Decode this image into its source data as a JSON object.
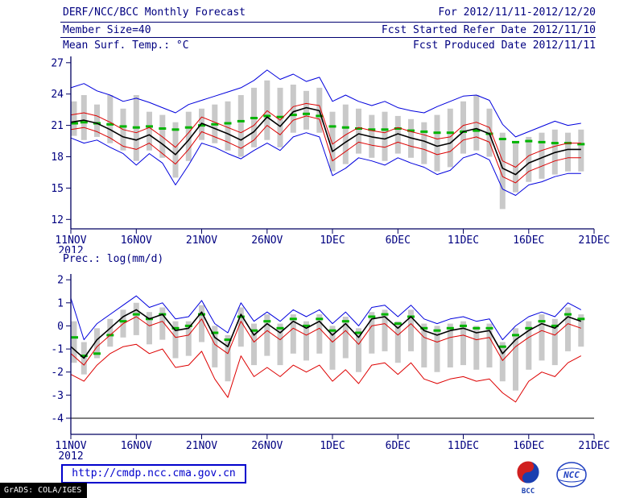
{
  "header": {
    "title": "DERF/NCC/BCC Monthly Forecast",
    "member_size": "Member Size=40",
    "variable": "Mean Surf. Temp.: °C",
    "forecast_range": "For 2012/11/11-2012/12/20",
    "refer_date": "Fcst Started Refer Date 2012/11/10",
    "produced_date": "Fcst Produced Date 2012/11/11"
  },
  "footer": {
    "url": "http://cmdp.ncc.cma.gov.cn",
    "grads_credit": "GrADS: COLA/IGES",
    "bcc_label": "BCC",
    "ncc_label": "NCC"
  },
  "colors": {
    "accent": "#000080",
    "axis": "#000060",
    "label": "#000080",
    "blue": "#0000dd",
    "red": "#dd0000",
    "black": "#000000",
    "green": "#00b400",
    "gray": "#c9c9c9"
  },
  "chart_data": [
    {
      "type": "line",
      "title": "Mean Surf. Temp.: °C",
      "x_tick_labels": [
        "11NOV",
        "16NOV",
        "21NOV",
        "26NOV",
        "1DEC",
        "6DEC",
        "11DEC",
        "16DEC",
        "21DEC"
      ],
      "x_tick_positions": [
        0,
        5,
        10,
        15,
        20,
        25,
        30,
        35,
        40
      ],
      "x_year_label": "2012",
      "x_max": 40,
      "n_days": 40,
      "ylim": [
        12,
        27
      ],
      "frame_ylim": [
        11.1,
        27.6
      ],
      "y_ticks": [
        12,
        15,
        18,
        21,
        24,
        27
      ],
      "grid": false,
      "legend": "none",
      "bars": {
        "name": "ensemble-spread",
        "color": "#c9c9c9",
        "top": [
          23.3,
          23.9,
          23.0,
          23.9,
          22.6,
          23.9,
          22.3,
          22.0,
          21.3,
          22.3,
          22.6,
          23.0,
          23.3,
          23.9,
          24.6,
          25.3,
          24.6,
          24.9,
          24.3,
          24.6,
          22.3,
          23.0,
          22.6,
          22.0,
          22.3,
          21.9,
          21.6,
          21.3,
          22.0,
          22.6,
          23.3,
          23.9,
          22.6,
          20.3,
          19.3,
          19.9,
          20.3,
          20.6,
          20.3,
          20.6
        ],
        "bottom": [
          20.0,
          19.6,
          19.9,
          19.3,
          18.6,
          17.6,
          18.6,
          17.9,
          16.0,
          17.6,
          19.6,
          19.3,
          18.6,
          18.0,
          18.9,
          19.6,
          18.9,
          20.3,
          20.6,
          20.3,
          16.6,
          17.3,
          18.3,
          17.9,
          17.6,
          18.3,
          17.9,
          17.3,
          16.6,
          17.0,
          18.3,
          18.6,
          18.0,
          13.0,
          14.6,
          15.6,
          15.9,
          16.3,
          16.6,
          16.6
        ]
      },
      "dashes": {
        "name": "climatology",
        "color": "#00b400",
        "values": [
          21.2,
          21.3,
          21.2,
          21.1,
          20.9,
          20.8,
          20.9,
          20.7,
          20.6,
          20.8,
          21.0,
          21.1,
          21.2,
          21.4,
          21.7,
          21.9,
          21.8,
          22.0,
          22.1,
          21.9,
          20.9,
          20.8,
          20.7,
          20.6,
          20.6,
          20.7,
          20.5,
          20.4,
          20.3,
          20.3,
          20.4,
          20.5,
          20.2,
          19.7,
          19.4,
          19.5,
          19.4,
          19.3,
          19.3,
          19.2
        ]
      },
      "series": [
        {
          "name": "ensemble-max",
          "color": "#0000dd",
          "width": 1,
          "values": [
            24.6,
            25.0,
            24.3,
            23.9,
            23.3,
            23.6,
            23.2,
            22.7,
            22.2,
            23.0,
            23.4,
            23.8,
            24.2,
            24.6,
            25.3,
            26.3,
            25.4,
            25.9,
            25.2,
            25.6,
            23.3,
            23.9,
            23.3,
            22.9,
            23.3,
            22.7,
            22.4,
            22.2,
            22.8,
            23.3,
            23.8,
            23.9,
            23.4,
            21.1,
            19.9,
            20.4,
            20.9,
            21.4,
            21.0,
            21.2
          ]
        },
        {
          "name": "upper-quartile",
          "color": "#dd0000",
          "width": 1,
          "values": [
            22.0,
            22.2,
            21.9,
            21.3,
            20.6,
            20.3,
            20.8,
            19.9,
            18.9,
            20.3,
            21.8,
            21.3,
            20.8,
            20.3,
            21.0,
            22.4,
            21.5,
            22.8,
            23.1,
            22.9,
            19.2,
            20.1,
            20.8,
            20.5,
            20.3,
            20.8,
            20.4,
            20.1,
            19.7,
            19.9,
            21.0,
            21.3,
            20.8,
            17.6,
            17.0,
            18.1,
            18.6,
            19.0,
            19.3,
            19.3
          ]
        },
        {
          "name": "ensemble-mean",
          "color": "#000000",
          "width": 1.6,
          "values": [
            21.3,
            21.5,
            21.2,
            20.6,
            19.9,
            19.6,
            20.1,
            19.2,
            18.2,
            19.6,
            21.2,
            20.7,
            20.2,
            19.6,
            20.4,
            21.8,
            20.9,
            22.3,
            22.7,
            22.4,
            18.5,
            19.4,
            20.2,
            19.9,
            19.7,
            20.2,
            19.8,
            19.5,
            19.0,
            19.3,
            20.4,
            20.7,
            20.2,
            16.9,
            16.3,
            17.4,
            17.9,
            18.4,
            18.7,
            18.7
          ]
        },
        {
          "name": "lower-quartile",
          "color": "#dd0000",
          "width": 1,
          "values": [
            20.6,
            20.8,
            20.4,
            19.8,
            19.0,
            18.7,
            19.3,
            18.3,
            17.3,
            18.7,
            20.4,
            19.9,
            19.4,
            18.8,
            19.6,
            21.0,
            20.1,
            21.5,
            21.9,
            21.6,
            17.6,
            18.5,
            19.4,
            19.1,
            18.9,
            19.4,
            19.0,
            18.7,
            18.2,
            18.5,
            19.6,
            19.9,
            19.4,
            16.1,
            15.5,
            16.6,
            17.1,
            17.6,
            17.9,
            17.9
          ]
        },
        {
          "name": "ensemble-min",
          "color": "#0000dd",
          "width": 1,
          "values": [
            19.8,
            19.3,
            19.6,
            18.9,
            18.3,
            17.2,
            18.3,
            17.4,
            15.3,
            17.2,
            19.3,
            18.9,
            18.3,
            17.8,
            18.6,
            19.3,
            18.6,
            19.9,
            20.3,
            19.9,
            16.2,
            16.9,
            17.9,
            17.6,
            17.2,
            17.9,
            17.4,
            17.0,
            16.3,
            16.7,
            17.9,
            18.3,
            17.7,
            14.9,
            14.3,
            15.3,
            15.6,
            16.1,
            16.4,
            16.4
          ]
        }
      ]
    },
    {
      "type": "line",
      "title": "Prec.: log(mm/d)",
      "x_tick_labels": [
        "11NOV",
        "16NOV",
        "21NOV",
        "26NOV",
        "1DEC",
        "6DEC",
        "11DEC",
        "16DEC",
        "21DEC"
      ],
      "x_tick_positions": [
        0,
        5,
        10,
        15,
        20,
        25,
        30,
        35,
        40
      ],
      "x_year_label": "2012",
      "x_max": 40,
      "n_days": 40,
      "ylim": [
        -4,
        2
      ],
      "frame_ylim": [
        -4.7,
        2.25
      ],
      "y_ticks": [
        2,
        1,
        0,
        -1,
        -2,
        -3,
        -4
      ],
      "grid": false,
      "legend": "none",
      "bars": {
        "name": "ensemble-spread",
        "color": "#c9c9c9",
        "top": [
          0.2,
          -0.7,
          -0.1,
          0.3,
          0.7,
          1.0,
          0.6,
          0.8,
          0.2,
          0.2,
          0.9,
          0.0,
          -0.4,
          0.8,
          0.1,
          0.5,
          0.1,
          0.5,
          0.2,
          0.5,
          0.0,
          0.4,
          -0.1,
          0.6,
          0.7,
          0.2,
          0.7,
          0.1,
          0.0,
          0.1,
          0.2,
          0.0,
          0.1,
          -0.7,
          -0.1,
          0.2,
          0.5,
          0.3,
          0.8,
          0.5
        ],
        "bottom": [
          -1.6,
          -2.1,
          -1.4,
          -0.9,
          -0.5,
          -0.4,
          -0.8,
          -0.6,
          -1.4,
          -1.3,
          -0.7,
          -1.8,
          -2.4,
          -0.9,
          -1.7,
          -1.3,
          -1.7,
          -1.2,
          -1.5,
          -1.2,
          -1.9,
          -1.4,
          -2.0,
          -1.2,
          -1.1,
          -1.6,
          -1.1,
          -1.8,
          -2.0,
          -1.8,
          -1.7,
          -1.9,
          -1.8,
          -2.4,
          -2.8,
          -1.9,
          -1.5,
          -1.7,
          -1.1,
          -0.9
        ]
      },
      "dashes": {
        "name": "climatology",
        "color": "#00b400",
        "values": [
          -0.5,
          -1.3,
          -1.2,
          -0.4,
          0.2,
          0.5,
          0.3,
          0.5,
          -0.1,
          0.0,
          0.5,
          -0.3,
          -0.6,
          0.4,
          -0.2,
          0.2,
          -0.1,
          0.3,
          0.0,
          0.3,
          -0.2,
          0.2,
          -0.3,
          0.4,
          0.5,
          0.1,
          0.4,
          -0.1,
          -0.2,
          -0.1,
          0.0,
          -0.1,
          -0.1,
          -0.9,
          -0.4,
          -0.1,
          0.2,
          0.0,
          0.5,
          0.3
        ]
      },
      "series": [
        {
          "name": "ensemble-max",
          "color": "#0000dd",
          "width": 1,
          "values": [
            1.2,
            -0.6,
            0.1,
            0.5,
            0.9,
            1.3,
            0.8,
            1.0,
            0.3,
            0.4,
            1.1,
            0.1,
            -0.3,
            1.0,
            0.2,
            0.6,
            0.2,
            0.7,
            0.4,
            0.7,
            0.1,
            0.6,
            0.0,
            0.8,
            0.9,
            0.4,
            0.9,
            0.3,
            0.1,
            0.3,
            0.4,
            0.2,
            0.3,
            -0.6,
            0.0,
            0.4,
            0.6,
            0.4,
            1.0,
            0.7
          ]
        },
        {
          "name": "ensemble-mean",
          "color": "#000000",
          "width": 1.6,
          "values": [
            -0.9,
            -1.4,
            -0.6,
            -0.1,
            0.4,
            0.7,
            0.3,
            0.5,
            -0.2,
            -0.1,
            0.6,
            -0.5,
            -0.9,
            0.5,
            -0.4,
            0.1,
            -0.3,
            0.2,
            -0.1,
            0.2,
            -0.4,
            0.1,
            -0.5,
            0.3,
            0.4,
            -0.1,
            0.4,
            -0.2,
            -0.4,
            -0.2,
            -0.1,
            -0.3,
            -0.2,
            -1.2,
            -0.6,
            -0.2,
            0.1,
            -0.1,
            0.4,
            0.2
          ]
        },
        {
          "name": "upper-quartile",
          "color": "#dd0000",
          "width": 1,
          "values": [
            -1.2,
            -1.7,
            -0.9,
            -0.4,
            0.1,
            0.4,
            0.0,
            0.2,
            -0.5,
            -0.4,
            0.3,
            -0.8,
            -1.2,
            0.2,
            -0.7,
            -0.2,
            -0.6,
            -0.1,
            -0.4,
            -0.1,
            -0.7,
            -0.2,
            -0.8,
            0.0,
            0.1,
            -0.4,
            0.1,
            -0.5,
            -0.7,
            -0.5,
            -0.4,
            -0.6,
            -0.5,
            -1.5,
            -0.9,
            -0.5,
            -0.2,
            -0.4,
            0.1,
            -0.1
          ]
        },
        {
          "name": "lower-quartile",
          "color": "#dd0000",
          "width": 1,
          "values": [
            -2.1,
            -2.4,
            -1.7,
            -1.2,
            -0.9,
            -0.8,
            -1.2,
            -1.0,
            -1.8,
            -1.7,
            -1.1,
            -2.3,
            -3.1,
            -1.3,
            -2.2,
            -1.8,
            -2.2,
            -1.7,
            -2.0,
            -1.7,
            -2.4,
            -1.9,
            -2.5,
            -1.7,
            -1.6,
            -2.1,
            -1.6,
            -2.3,
            -2.5,
            -2.3,
            -2.2,
            -2.4,
            -2.3,
            -2.9,
            -3.3,
            -2.4,
            -2.0,
            -2.2,
            -1.6,
            -1.3
          ]
        },
        {
          "name": "ensemble-min-floor",
          "color": "#000000",
          "width": 1,
          "constant": -4,
          "x_from": 0,
          "x_to": 40
        }
      ]
    }
  ]
}
